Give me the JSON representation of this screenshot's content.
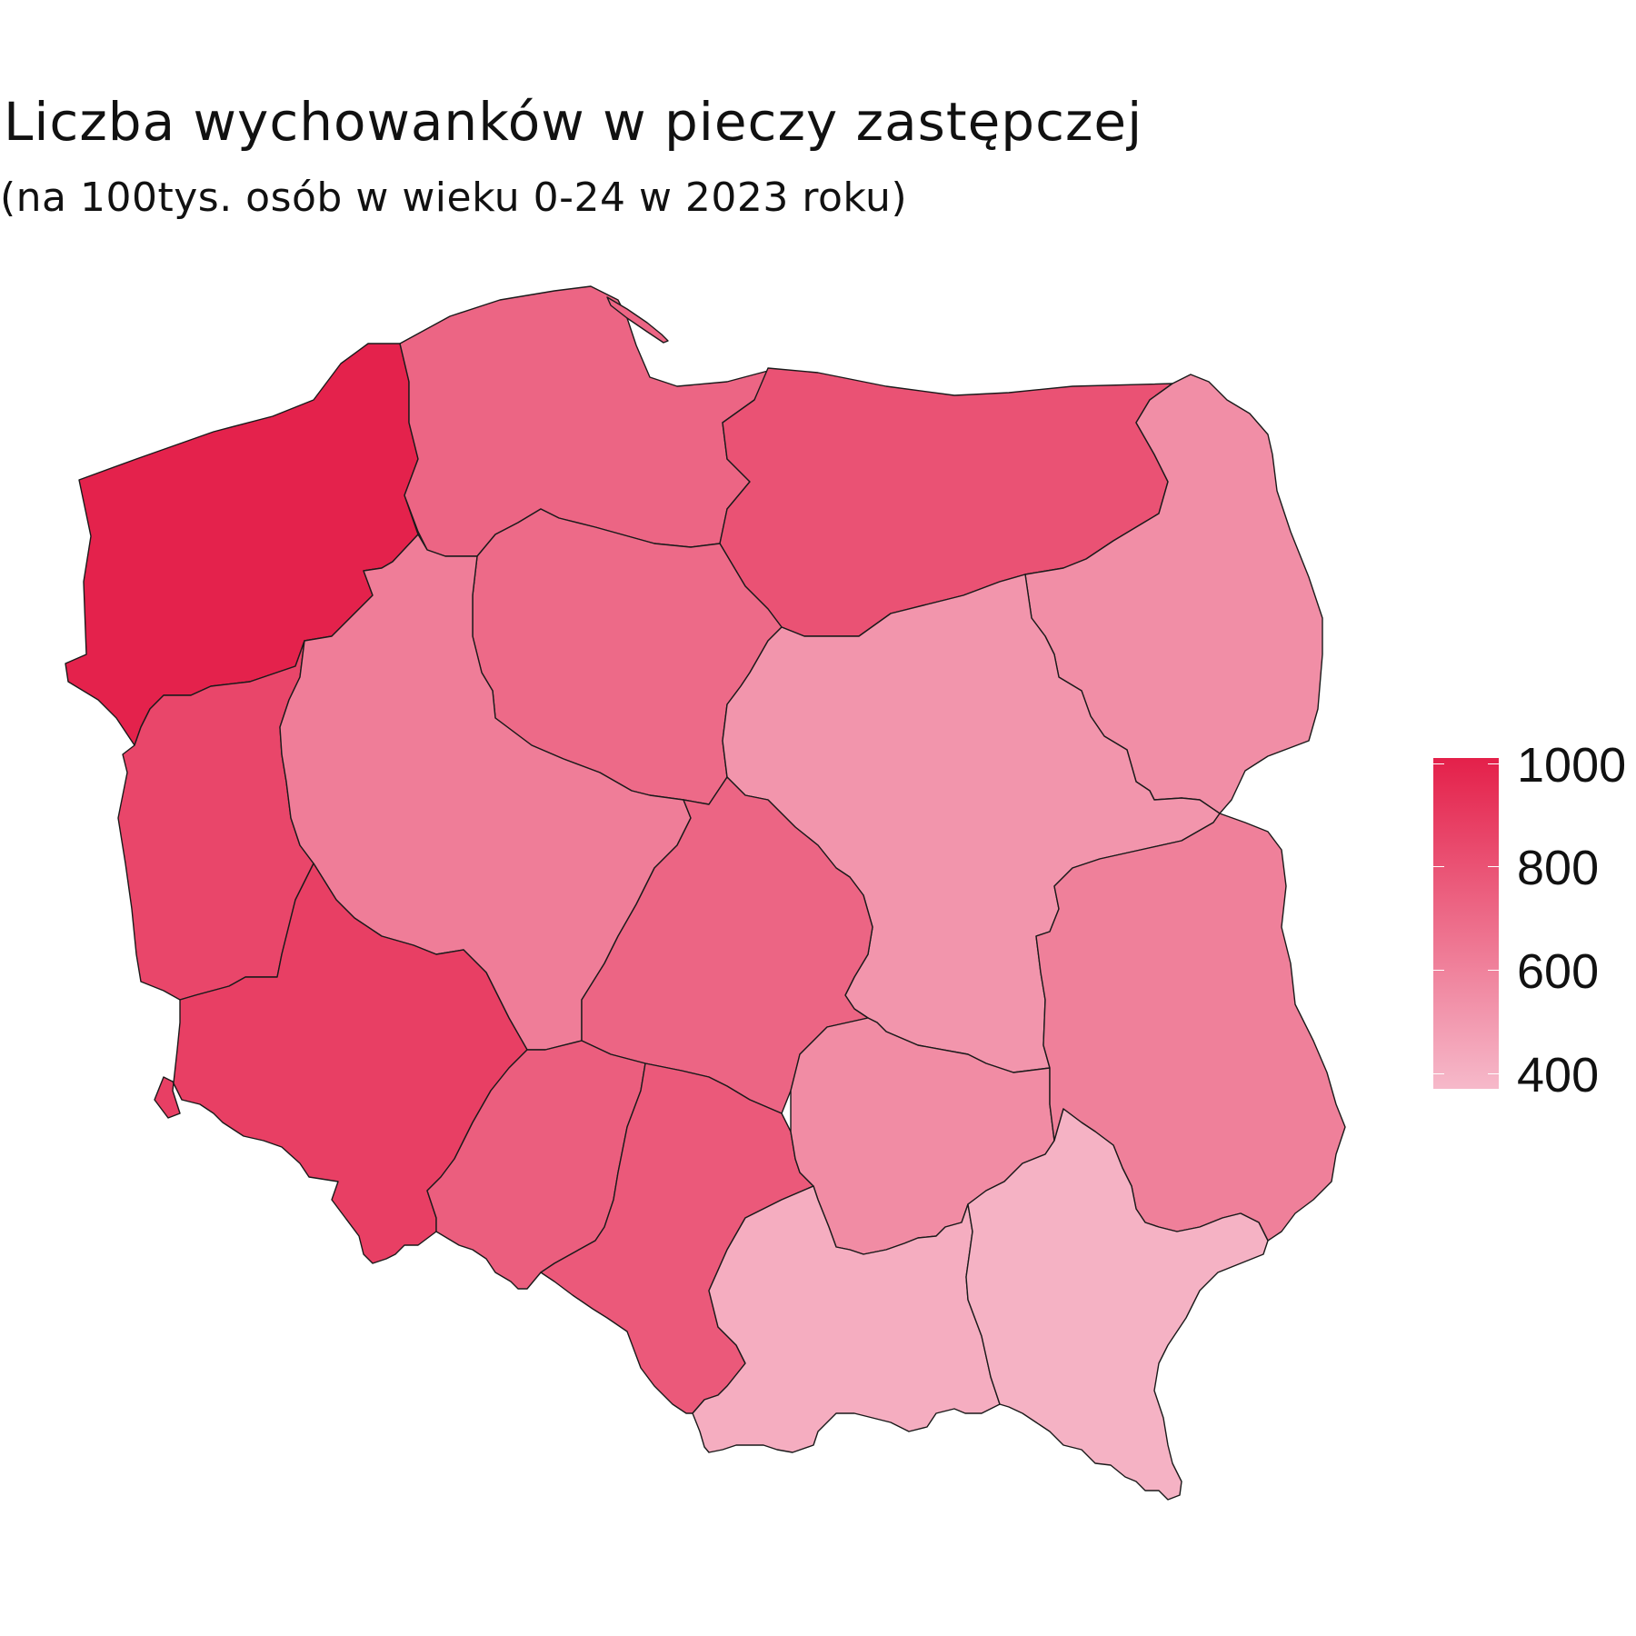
{
  "title": "Liczba wychowanków w pieczy zastępczej",
  "subtitle": "(na 100tys. osób w wieku 0-24 w 2023 roku)",
  "chart_data": {
    "type": "choropleth",
    "regions": [
      {
        "id": "zachodniopomorskie",
        "value": 1000
      },
      {
        "id": "pomorskie",
        "value": 720
      },
      {
        "id": "warminsko-mazurskie",
        "value": 800
      },
      {
        "id": "podlaskie",
        "value": 550
      },
      {
        "id": "kujawsko-pomorskie",
        "value": 700
      },
      {
        "id": "lubuskie",
        "value": 850
      },
      {
        "id": "wielkopolskie",
        "value": 620
      },
      {
        "id": "mazowieckie",
        "value": 520
      },
      {
        "id": "lodzkie",
        "value": 720
      },
      {
        "id": "dolnoslaskie",
        "value": 880
      },
      {
        "id": "opolskie",
        "value": 750
      },
      {
        "id": "slaskie",
        "value": 770
      },
      {
        "id": "swietokrzyskie",
        "value": 560
      },
      {
        "id": "lubelskie",
        "value": 610
      },
      {
        "id": "malopolskie",
        "value": 420
      },
      {
        "id": "podkarpackie",
        "value": 400
      }
    ],
    "legend": {
      "range": [
        370,
        1010
      ],
      "ticks": [
        400,
        600,
        800,
        1000
      ],
      "tick_labels": [
        "400",
        "600",
        "800",
        "1000"
      ],
      "color_low": "#f6b9ca",
      "color_high": "#e4204a",
      "placement": "right"
    }
  }
}
